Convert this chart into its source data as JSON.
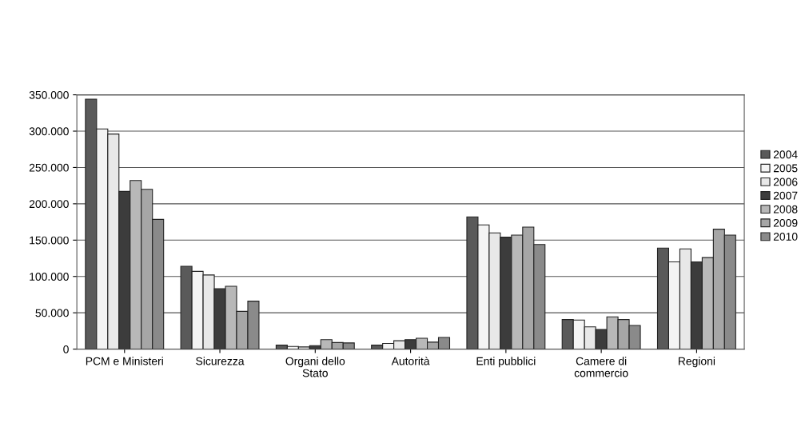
{
  "chart_data": {
    "type": "bar",
    "categories": [
      "PCM e Ministeri",
      "Sicurezza",
      "Organi dello\nStato",
      "Autorità",
      "Enti pubblici",
      "Camere di\ncommercio",
      "Regioni"
    ],
    "series": [
      {
        "name": "2004",
        "color": "#5a5a5a",
        "values": [
          344000,
          114000,
          5500,
          5500,
          182000,
          40700,
          139000
        ]
      },
      {
        "name": "2005",
        "color": "#f4f4f4",
        "values": [
          303000,
          107000,
          3700,
          7800,
          171000,
          40000,
          120000
        ]
      },
      {
        "name": "2006",
        "color": "#e8e8e8",
        "values": [
          296000,
          102000,
          3000,
          11500,
          160000,
          30700,
          138000
        ]
      },
      {
        "name": "2007",
        "color": "#3c3c3c",
        "values": [
          217000,
          83000,
          4800,
          13000,
          154000,
          27000,
          120000
        ]
      },
      {
        "name": "2008",
        "color": "#b8b8b8",
        "values": [
          232000,
          86500,
          13000,
          15000,
          157000,
          44400,
          126000
        ]
      },
      {
        "name": "2009",
        "color": "#a6a6a6",
        "values": [
          220000,
          52000,
          9000,
          9600,
          168000,
          40700,
          165000
        ]
      },
      {
        "name": "2010",
        "color": "#8a8a8a",
        "values": [
          178500,
          66000,
          8500,
          16000,
          144000,
          32600,
          157000
        ]
      }
    ],
    "ylim": [
      0,
      350000
    ],
    "yticks": [
      {
        "value": 0,
        "label": "0"
      },
      {
        "value": 50000,
        "label": "50.000"
      },
      {
        "value": 100000,
        "label": "100.000"
      },
      {
        "value": 150000,
        "label": "150.000"
      },
      {
        "value": 200000,
        "label": "200.000"
      },
      {
        "value": 250000,
        "label": "250.000"
      },
      {
        "value": 300000,
        "label": "300.000"
      },
      {
        "value": 350000,
        "label": "350.000"
      }
    ],
    "grid": "y",
    "legend": "right"
  }
}
